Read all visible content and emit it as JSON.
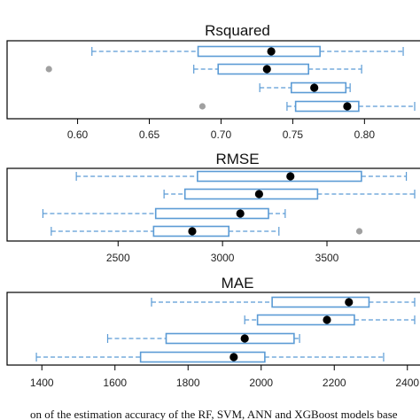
{
  "chart_data": [
    {
      "type": "boxplot",
      "title": "Rsquared",
      "orientation": "horizontal",
      "xlim": [
        0.57,
        0.835
      ],
      "ticks": [
        0.6,
        0.65,
        0.7,
        0.75,
        0.8
      ],
      "tick_labels": [
        "0.60",
        "0.65",
        "0.70",
        "0.75",
        "0.80"
      ],
      "boxes": [
        {
          "whisker_low": 0.61,
          "q1": 0.684,
          "median": 0.735,
          "q3": 0.769,
          "whisker_high": 0.827,
          "mean": 0.735,
          "outliers": []
        },
        {
          "whisker_low": 0.681,
          "q1": 0.698,
          "median": 0.732,
          "q3": 0.761,
          "whisker_high": 0.798,
          "mean": 0.732,
          "outliers": [
            0.58
          ]
        },
        {
          "whisker_low": 0.727,
          "q1": 0.749,
          "median": 0.765,
          "q3": 0.787,
          "whisker_high": 0.79,
          "mean": 0.765,
          "outliers": []
        },
        {
          "whisker_low": 0.746,
          "q1": 0.752,
          "median": 0.788,
          "q3": 0.796,
          "whisker_high": 0.835,
          "mean": 0.788,
          "outliers": [
            0.687
          ]
        }
      ]
    },
    {
      "type": "boxplot",
      "title": "RMSE",
      "orientation": "horizontal",
      "xlim": [
        2100,
        3920
      ],
      "ticks": [
        2500,
        3000,
        3500
      ],
      "tick_labels": [
        "2500",
        "3000",
        "3500"
      ],
      "boxes": [
        {
          "whisker_low": 2300,
          "q1": 2880,
          "median": 3325,
          "q3": 3665,
          "whisker_high": 3880,
          "mean": 3325,
          "outliers": []
        },
        {
          "whisker_low": 2720,
          "q1": 2820,
          "median": 3175,
          "q3": 3455,
          "whisker_high": 3920,
          "mean": 3175,
          "outliers": []
        },
        {
          "whisker_low": 2140,
          "q1": 2680,
          "median": 3085,
          "q3": 3220,
          "whisker_high": 3300,
          "mean": 3085,
          "outliers": []
        },
        {
          "whisker_low": 2180,
          "q1": 2670,
          "median": 2855,
          "q3": 3030,
          "whisker_high": 3270,
          "mean": 2855,
          "outliers": [
            3655
          ]
        }
      ]
    },
    {
      "type": "boxplot",
      "title": "MAE",
      "orientation": "horizontal",
      "xlim": [
        1380,
        2420
      ],
      "ticks": [
        1400,
        1600,
        1800,
        2000,
        2200,
        2400
      ],
      "tick_labels": [
        "1400",
        "1600",
        "1800",
        "2000",
        "2200",
        "2400"
      ],
      "boxes": [
        {
          "whisker_low": 1700,
          "q1": 2030,
          "median": 2240,
          "q3": 2295,
          "whisker_high": 2420,
          "mean": 2240,
          "outliers": []
        },
        {
          "whisker_low": 1955,
          "q1": 1990,
          "median": 2180,
          "q3": 2255,
          "whisker_high": 2420,
          "mean": 2180,
          "outliers": []
        },
        {
          "whisker_low": 1580,
          "q1": 1740,
          "median": 1955,
          "q3": 2090,
          "whisker_high": 2105,
          "mean": 1955,
          "outliers": []
        },
        {
          "whisker_low": 1385,
          "q1": 1670,
          "median": 1925,
          "q3": 2010,
          "whisker_high": 2335,
          "mean": 1925,
          "outliers": []
        }
      ]
    }
  ],
  "caption": "on of the estimation accuracy of the RF, SVM, ANN and XGBoost models base",
  "colors": {
    "box": "#5b9bd5",
    "whisker": "#5b9bd5",
    "mean": "#000000",
    "outlier": "#a0a0a0",
    "frame": "#000000"
  }
}
